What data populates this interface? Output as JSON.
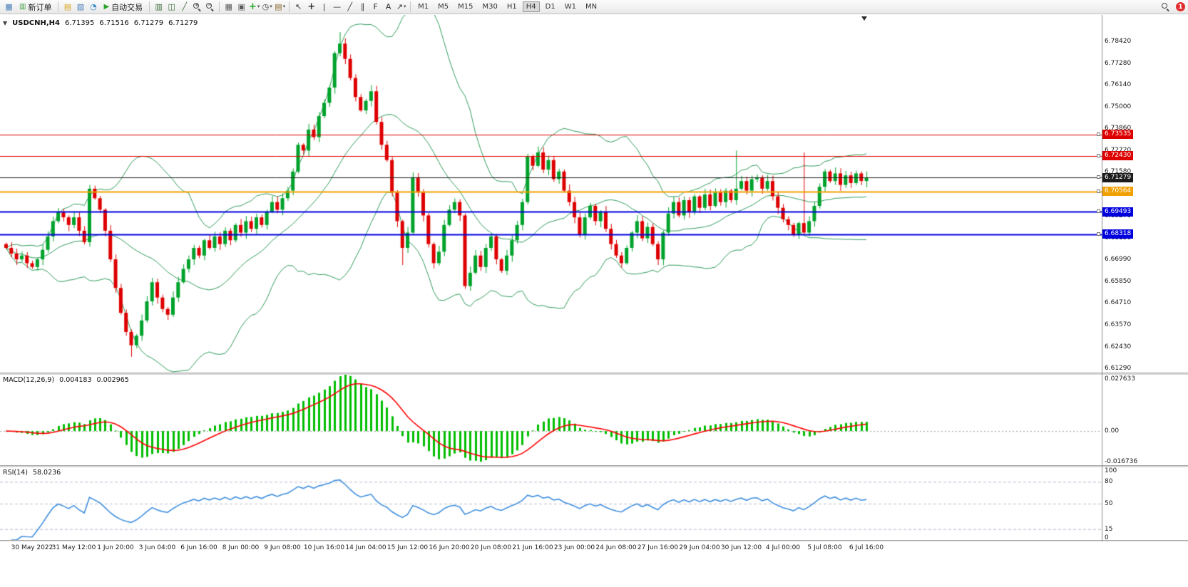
{
  "toolbar": {
    "active_timeframe": "H4",
    "badge_count": "1",
    "items": [
      {
        "name": "chart-window-icon",
        "type": "icon",
        "glyph": "▦",
        "color": "#4a7ebb"
      },
      {
        "name": "new-order-button",
        "type": "button",
        "label": "新订单",
        "icon_glyph": "▥",
        "icon_color": "#3f9e3f"
      },
      {
        "name": "separator",
        "type": "sep"
      },
      {
        "name": "new-chart-icon",
        "type": "icon",
        "glyph": "▤",
        "color": "#d9a521"
      },
      {
        "name": "profiles-icon",
        "type": "icon",
        "glyph": "▧",
        "color": "#4a7ebb"
      },
      {
        "name": "market-watch-icon",
        "type": "icon",
        "glyph": "◔",
        "color": "#2f86c9"
      },
      {
        "name": "autotrading-button",
        "type": "button",
        "label": "自动交易",
        "icon_glyph": "▶",
        "icon_color": "#2aa52a"
      },
      {
        "name": "separator",
        "type": "sep"
      },
      {
        "name": "bar-chart-icon",
        "type": "icon",
        "glyph": "▥",
        "color": "#3c6e3c"
      },
      {
        "name": "candlestick-chart-icon",
        "type": "icon",
        "glyph": "◫",
        "color": "#3c6e3c"
      },
      {
        "name": "line-chart-icon",
        "type": "icon",
        "glyph": "╱",
        "color": "#3c6e3c"
      },
      {
        "name": "zoom-in-icon",
        "type": "mag",
        "sign": "+"
      },
      {
        "name": "zoom-out-icon",
        "type": "mag",
        "sign": "−"
      },
      {
        "name": "separator",
        "type": "sep"
      },
      {
        "name": "tile-windows-icon",
        "type": "icon",
        "glyph": "▦",
        "color": "#5a5a5a"
      },
      {
        "name": "cascade-windows-icon",
        "type": "icon",
        "glyph": "▣",
        "color": "#5a5a5a"
      },
      {
        "name": "indicators-icon",
        "type": "icon",
        "glyph": "+",
        "color": "#1da51d",
        "dropdown": true
      },
      {
        "name": "periods-icon",
        "type": "icon",
        "glyph": "◷",
        "color": "#444444",
        "dropdown": true
      },
      {
        "name": "templates-icon",
        "type": "icon",
        "glyph": "▤",
        "color": "#8a6a2f",
        "dropdown": true
      },
      {
        "name": "separator",
        "type": "sep"
      },
      {
        "name": "cursor-icon",
        "type": "icon",
        "glyph": "↖",
        "color": "#333333"
      },
      {
        "name": "crosshair-icon",
        "type": "icon",
        "glyph": "+",
        "color": "#333333"
      },
      {
        "name": "vertical-line-icon",
        "type": "icon",
        "glyph": "|",
        "color": "#333333"
      },
      {
        "name": "horizontal-line-icon",
        "type": "icon",
        "glyph": "—",
        "color": "#333333"
      },
      {
        "name": "trendline-icon",
        "type": "icon",
        "glyph": "╱",
        "color": "#333333"
      },
      {
        "name": "channel-icon",
        "type": "icon",
        "glyph": "∥",
        "color": "#333333"
      },
      {
        "name": "fibonacci-icon",
        "type": "icon",
        "glyph": "F",
        "color": "#333333"
      },
      {
        "name": "text-icon",
        "type": "icon",
        "glyph": "A",
        "color": "#333333"
      },
      {
        "name": "arrows-icon",
        "type": "icon",
        "glyph": "↗",
        "color": "#333333",
        "dropdown": true
      },
      {
        "name": "separator",
        "type": "sep"
      },
      {
        "name": "tf-m1",
        "type": "tf",
        "label": "M1"
      },
      {
        "name": "tf-m5",
        "type": "tf",
        "label": "M5"
      },
      {
        "name": "tf-m15",
        "type": "tf",
        "label": "M15"
      },
      {
        "name": "tf-m30",
        "type": "tf",
        "label": "M30"
      },
      {
        "name": "tf-h1",
        "type": "tf",
        "label": "H1"
      },
      {
        "name": "tf-h4",
        "type": "tf",
        "label": "H4"
      },
      {
        "name": "tf-d1",
        "type": "tf",
        "label": "D1"
      },
      {
        "name": "tf-w1",
        "type": "tf",
        "label": "W1"
      },
      {
        "name": "tf-mn",
        "type": "tf",
        "label": "MN"
      },
      {
        "name": "toolbar-spacer",
        "type": "spacer"
      },
      {
        "name": "search-icon",
        "type": "mag",
        "sign": ""
      },
      {
        "name": "notification-badge",
        "type": "badge",
        "label": "1"
      }
    ]
  },
  "chart": {
    "title": "USDCNH,H4",
    "open": "6.71395",
    "high": "6.71516",
    "low": "6.71279",
    "close": "6.71279"
  },
  "price_axis": {
    "ticks": [
      "6.78420",
      "6.77280",
      "6.76140",
      "6.75000",
      "6.73860",
      "6.72720",
      "6.71580",
      "6.70440",
      "6.69270",
      "6.68130",
      "6.66990",
      "6.65850",
      "6.64710",
      "6.63570",
      "6.62430",
      "6.61290"
    ]
  },
  "levels": [
    {
      "label": "6.73535",
      "value": 6.73535,
      "color": "#de0000",
      "width": 1
    },
    {
      "label": "6.72430",
      "value": 6.7243,
      "color": "#de0000",
      "width": 1
    },
    {
      "label": "6.71279",
      "value": 6.71279,
      "color": "#1c1c1c",
      "width": 1,
      "is_price": true
    },
    {
      "label": "6.70564",
      "value": 6.70564,
      "color": "#f0a000",
      "width": 2
    },
    {
      "label": "6.69493",
      "value": 6.69493,
      "color": "#0000de",
      "width": 2
    },
    {
      "label": "6.68318",
      "value": 6.68318,
      "color": "#0000de",
      "width": 2
    }
  ],
  "indicators": {
    "macd": {
      "label": "MACD(12,26,9)",
      "value_main": "0.004183",
      "value_signal": "0.002965",
      "axis_max": "0.027633",
      "axis_zero": "0.00",
      "axis_min": "-0.016736"
    },
    "rsi": {
      "label": "RSI(14)",
      "value": "58.0236",
      "axis_top": "100",
      "axis_bottom": "0"
    }
  },
  "time_axis": {
    "labels": [
      "30 May 2022",
      "31 May 12:00",
      "1 Jun 20:00",
      "3 Jun 04:00",
      "6 Jun 16:00",
      "8 Jun 00:00",
      "9 Jun 08:00",
      "10 Jun 16:00",
      "14 Jun 04:00",
      "15 Jun 12:00",
      "16 Jun 20:00",
      "20 Jun 08:00",
      "21 Jun 16:00",
      "23 Jun 00:00",
      "24 Jun 08:00",
      "27 Jun 16:00",
      "29 Jun 04:00",
      "30 Jun 12:00",
      "4 Jul 00:00",
      "5 Jul 08:00",
      "6 Jul 16:00"
    ]
  },
  "colors": {
    "up": "#00a22b",
    "down": "#de0000",
    "bands": "#2e9a58",
    "macd_hist": "#00be00",
    "macd_signal": "#ff0000",
    "rsi": "#3e8ede",
    "zero_line": "#9a9a9a",
    "rsi_level": "#b9b9d0"
  },
  "chart_data": {
    "type": "candlestick",
    "symbol": "USDCNH",
    "period": "H4",
    "price_range": [
      6.6107,
      6.798
    ],
    "first_open": 6.678,
    "closes": [
      6.676,
      6.673,
      6.67,
      6.672,
      6.668,
      6.666,
      6.67,
      6.675,
      6.682,
      6.69,
      6.695,
      6.692,
      6.688,
      6.692,
      6.685,
      6.679,
      6.707,
      6.702,
      6.696,
      6.685,
      6.67,
      6.655,
      6.642,
      6.632,
      6.625,
      6.63,
      6.638,
      6.648,
      6.658,
      6.65,
      6.644,
      6.641,
      6.65,
      6.658,
      6.665,
      6.67,
      6.676,
      6.672,
      6.68,
      6.676,
      6.682,
      6.678,
      6.685,
      6.68,
      6.688,
      6.684,
      6.69,
      6.686,
      6.692,
      6.688,
      6.695,
      6.7,
      6.696,
      6.702,
      6.706,
      6.716,
      6.73,
      6.727,
      6.738,
      6.734,
      6.745,
      6.752,
      6.76,
      6.778,
      6.783,
      6.775,
      6.765,
      6.755,
      6.748,
      6.753,
      6.758,
      6.742,
      6.73,
      6.722,
      6.705,
      6.69,
      6.676,
      6.684,
      6.713,
      6.705,
      6.693,
      6.678,
      6.668,
      6.674,
      6.688,
      6.696,
      6.7,
      6.693,
      6.656,
      6.663,
      6.672,
      6.666,
      6.676,
      6.682,
      6.67,
      6.664,
      6.672,
      6.68,
      6.688,
      6.7,
      6.724,
      6.719,
      6.726,
      6.717,
      6.722,
      6.712,
      6.716,
      6.706,
      6.7,
      6.692,
      6.683,
      6.692,
      6.698,
      6.69,
      6.695,
      6.686,
      6.678,
      6.672,
      6.668,
      6.676,
      6.684,
      6.69,
      6.681,
      6.687,
      6.678,
      6.67,
      6.684,
      6.694,
      6.7,
      6.693,
      6.701,
      6.695,
      6.703,
      6.697,
      6.704,
      6.698,
      6.705,
      6.7,
      6.706,
      6.701,
      6.707,
      6.711,
      6.706,
      6.712,
      6.713,
      6.707,
      6.711,
      6.703,
      6.697,
      6.691,
      6.688,
      6.683,
      6.689,
      6.684,
      6.69,
      6.698,
      6.708,
      6.716,
      6.711,
      6.715,
      6.709,
      6.714,
      6.71,
      6.715,
      6.711,
      6.7128
    ],
    "wick_overrides": {
      "24": {
        "low": 6.619
      },
      "64": {
        "high": 6.789
      },
      "76": {
        "low": 6.667
      },
      "125": {
        "low": 6.667
      },
      "140": {
        "high": 6.727
      },
      "153": {
        "high": 6.726
      }
    },
    "indicators": {
      "bollinger": {
        "period": 20,
        "deviation": 2
      },
      "macd": {
        "fast": 12,
        "slow": 26,
        "signal": 9,
        "range": [
          -0.016736,
          0.027633
        ]
      },
      "rsi": {
        "period": 14,
        "range": [
          0,
          100
        ],
        "levels": [
          80,
          50,
          15
        ]
      }
    }
  }
}
